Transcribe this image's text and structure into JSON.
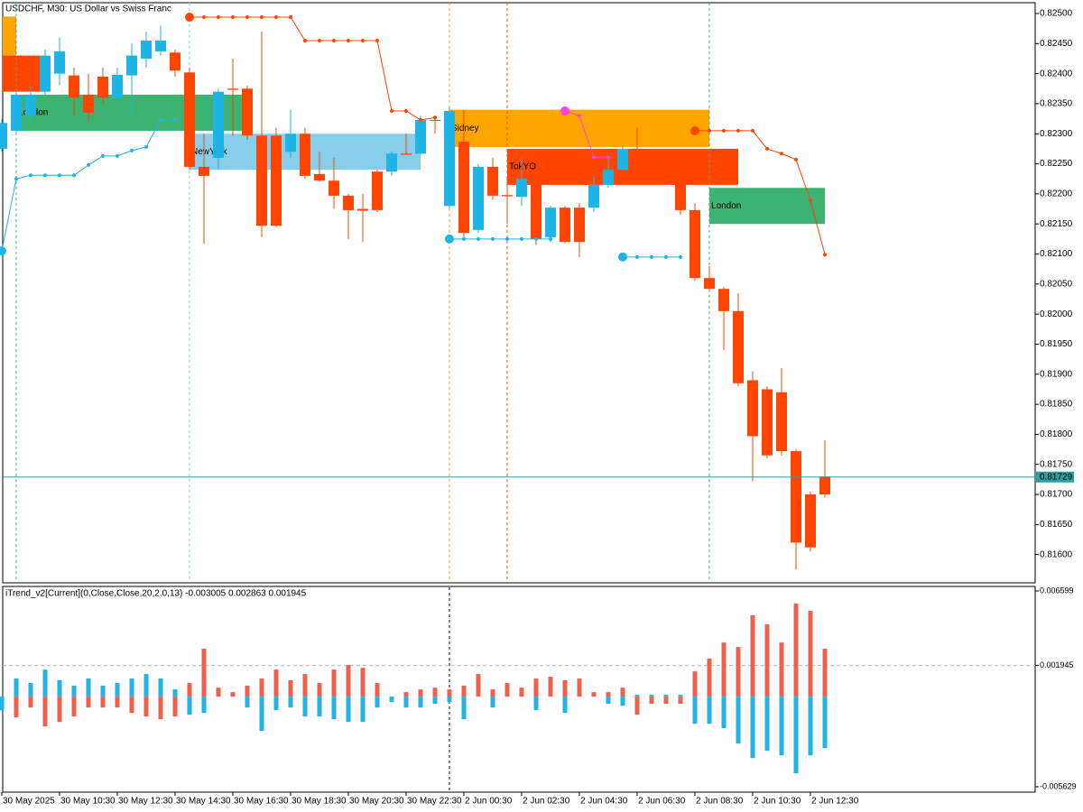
{
  "chart_data": [
    {
      "type": "candlestick",
      "title": "USDCHF, M30:  US Dollar vs Swiss Franc",
      "categories": [
        "30 May 2025",
        null,
        null,
        null,
        "30 May 10:30",
        null,
        null,
        null,
        "30 May 12:30",
        null,
        null,
        null,
        "30 May 14:30",
        null,
        null,
        null,
        "30 May 16:30",
        null,
        null,
        null,
        "30 May 18:30",
        null,
        null,
        null,
        "30 May 20:30",
        null,
        null,
        null,
        "30 May 22:30",
        null,
        null,
        null,
        "2 Jun 00:30",
        null,
        null,
        null,
        "2 Jun 02:30",
        null,
        null,
        null,
        "2 Jun 04:30",
        null,
        null,
        null,
        "2 Jun 06:30",
        null,
        null,
        null,
        "2 Jun 08:30",
        null,
        null,
        null,
        "2 Jun 10:30",
        null,
        null,
        null,
        "2 Jun 12:30",
        null
      ],
      "open": [
        0.82275,
        0.82305,
        0.8233,
        0.8237,
        0.824,
        0.82397,
        0.82365,
        0.82395,
        0.8236,
        0.82397,
        0.82425,
        0.82437,
        0.82435,
        0.82402,
        0.82245,
        0.8226,
        0.82375,
        0.82375,
        0.82297,
        0.82297,
        0.8227,
        0.823,
        0.82233,
        0.82222,
        0.82197,
        0.82175,
        0.82237,
        0.82237,
        0.82267,
        0.82267,
        0.82323,
        0.8218,
        0.82287,
        0.8214,
        0.82245,
        0.82198,
        0.82195,
        0.82225,
        0.82128,
        0.82177,
        0.82177,
        0.82177,
        0.82215,
        0.8224,
        0.82275,
        0.82242,
        0.82246,
        0.82245,
        0.82173,
        0.8206,
        0.82042,
        0.82005,
        0.8189,
        0.81875,
        0.8187,
        0.81772,
        0.817,
        0.8173
      ],
      "high": [
        0.82325,
        0.82375,
        0.8238,
        0.8244,
        0.8246,
        0.8241,
        0.824,
        0.8241,
        0.8241,
        0.8245,
        0.8247,
        0.8248,
        0.8244,
        0.8241,
        0.823,
        0.82375,
        0.82425,
        0.8238,
        0.8247,
        0.8231,
        0.8234,
        0.8231,
        0.8227,
        0.8226,
        0.822,
        0.822,
        0.8224,
        0.8227,
        0.823,
        0.8233,
        0.8233,
        0.82345,
        0.8234,
        0.8225,
        0.8226,
        0.8223,
        0.8226,
        0.8223,
        0.8218,
        0.8218,
        0.82185,
        0.8223,
        0.8226,
        0.8228,
        0.8231,
        0.8225,
        0.82255,
        0.8226,
        0.82185,
        0.8208,
        0.82045,
        0.82035,
        0.81905,
        0.8188,
        0.8191,
        0.81775,
        0.81705,
        0.8179
      ],
      "low": [
        0.8227,
        0.823,
        0.8232,
        0.82365,
        0.8238,
        0.8233,
        0.8232,
        0.8235,
        0.82355,
        0.8233,
        0.8241,
        0.8243,
        0.82395,
        0.8224,
        0.82117,
        0.8224,
        0.82297,
        0.8229,
        0.82128,
        0.82145,
        0.8226,
        0.82225,
        0.8222,
        0.82175,
        0.82125,
        0.8212,
        0.8217,
        0.8223,
        0.82265,
        0.82265,
        0.823,
        0.82175,
        0.82128,
        0.82135,
        0.8219,
        0.8215,
        0.8218,
        0.82115,
        0.8212,
        0.82118,
        0.82095,
        0.8217,
        0.8221,
        0.8224,
        0.8224,
        0.82235,
        0.8224,
        0.82165,
        0.82055,
        0.8204,
        0.8194,
        0.8188,
        0.81722,
        0.8176,
        0.81765,
        0.81575,
        0.81605,
        0.81695
      ],
      "close": [
        0.82318,
        0.82365,
        0.82365,
        0.8243,
        0.82437,
        0.8236,
        0.82335,
        0.8236,
        0.82398,
        0.8243,
        0.82455,
        0.82455,
        0.82405,
        0.82245,
        0.8223,
        0.8237,
        0.82373,
        0.82297,
        0.82147,
        0.82147,
        0.823,
        0.8223,
        0.82222,
        0.82197,
        0.82173,
        0.82172,
        0.82173,
        0.82267,
        0.82265,
        0.82323,
        0.82322,
        0.82338,
        0.82135,
        0.82245,
        0.82197,
        0.82196,
        0.82225,
        0.82125,
        0.82177,
        0.8212,
        0.8212,
        0.82215,
        0.8224,
        0.82275,
        0.8224,
        0.8224,
        0.82243,
        0.82173,
        0.8206,
        0.82042,
        0.82005,
        0.81885,
        0.81797,
        0.81765,
        0.81772,
        0.8162,
        0.81612,
        0.817
      ],
      "up_color": "#1eb4e6",
      "down_color": "#ff4500",
      "ylim": [
        0.81553,
        0.82518
      ],
      "yticks": [
        {
          "value": 0.825,
          "label": "0.82500"
        },
        {
          "value": 0.8245,
          "label": "0.82450"
        },
        {
          "value": 0.824,
          "label": "0.82400"
        },
        {
          "value": 0.8235,
          "label": "0.82350"
        },
        {
          "value": 0.823,
          "label": "0.82300"
        },
        {
          "value": 0.8225,
          "label": "0.82250"
        },
        {
          "value": 0.822,
          "label": "0.82200"
        },
        {
          "value": 0.8215,
          "label": "0.82150"
        },
        {
          "value": 0.821,
          "label": "0.82100"
        },
        {
          "value": 0.8205,
          "label": "0.82050"
        },
        {
          "value": 0.82,
          "label": "0.82000"
        },
        {
          "value": 0.8195,
          "label": "0.81950"
        },
        {
          "value": 0.819,
          "label": "0.81900"
        },
        {
          "value": 0.8185,
          "label": "0.81850"
        },
        {
          "value": 0.818,
          "label": "0.81800"
        },
        {
          "value": 0.8175,
          "label": "0.81750"
        },
        {
          "value": 0.817,
          "label": "0.81700"
        },
        {
          "value": 0.8165,
          "label": "0.81650"
        },
        {
          "value": 0.816,
          "label": "0.81600"
        }
      ],
      "current_price": 0.81729,
      "current_color": "#2e9e9e",
      "sessions": [
        {
          "color": "#ffa500",
          "start": 0,
          "end": 1,
          "high": 0.82495,
          "low": 0.8243
        },
        {
          "color": "#ff4500",
          "start": 0,
          "end": 3,
          "high": 0.8243,
          "low": 0.8237
        },
        {
          "name": "London",
          "color": "#3cb371",
          "start": 1,
          "end": 17,
          "high": 0.82365,
          "low": 0.82305
        },
        {
          "name": "NewYork",
          "color": "#87ceeb",
          "start": 13,
          "end": 29,
          "high": 0.823,
          "low": 0.8224
        },
        {
          "name": "Sidney",
          "color": "#ffa500",
          "start": 31,
          "end": 49,
          "high": 0.8234,
          "low": 0.82278
        },
        {
          "name": "TokYO",
          "color": "#ff4500",
          "start": 35,
          "end": 51,
          "high": 0.82275,
          "low": 0.82215
        },
        {
          "name": "London",
          "color": "#3cb371",
          "start": 49,
          "end": 57,
          "high": 0.8221,
          "low": 0.8215
        }
      ],
      "lines": [
        {
          "color": "#1eb4e6",
          "start": 0,
          "values": [
            0.82105,
            0.82225,
            0.82231,
            0.82231,
            0.82231,
            0.82231,
            0.82248,
            0.82263,
            0.82263,
            0.82272,
            0.82278,
            0.82323,
            0.82323
          ]
        },
        {
          "color": "#ff4500",
          "start": 13,
          "values": [
            0.82494,
            0.82494,
            0.82494,
            0.82494,
            0.82494,
            0.82494,
            0.82494,
            0.82494,
            0.82455,
            0.82455,
            0.82455,
            0.82455,
            0.82455,
            0.82455,
            0.82338,
            0.82338,
            0.82323,
            0.82327
          ]
        },
        {
          "color": "#1eb4e6",
          "start": 31,
          "values": [
            0.82125,
            0.82125,
            0.82125,
            0.82125,
            0.82125,
            0.82125,
            0.82125,
            0.82125
          ]
        },
        {
          "color": "#ff44dd",
          "start": 39,
          "values": [
            0.82338,
            0.8233,
            0.82261,
            0.82261
          ]
        },
        {
          "color": "#1eb4e6",
          "start": 43,
          "values": [
            0.82095,
            0.82095,
            0.82095,
            0.82095,
            0.82095
          ]
        },
        {
          "color": "#ff4500",
          "start": 48,
          "values": [
            0.82305,
            0.82305,
            0.82305,
            0.82305,
            0.82305,
            0.82275,
            0.82267,
            0.82257,
            0.82189,
            0.82099
          ]
        }
      ]
    },
    {
      "type": "bar",
      "title": "iTrend_v2[Current](0,Close,Close,20,2.0,13) -0.003005 0.002863 0.001945",
      "ylim": [
        -0.005967,
        0.006881
      ],
      "yticks": [
        0.006599,
        0.001945,
        -0.005629
      ],
      "level": 0.001945,
      "series": [
        {
          "color": "#f0604a",
          "values": [
            0,
            -0.0013,
            -0.00068,
            -0.00186,
            -0.00158,
            -0.00124,
            -0.00068,
            -0.00068,
            -0.00068,
            -0.00102,
            -0.00124,
            -0.00141,
            -0.00124,
            0.00085,
            0.00299,
            0.00056,
            0.00028,
            0.00068,
            0.00113,
            0.00169,
            0.00102,
            0.00141,
            0.00085,
            0.00169,
            0.00197,
            0.0018,
            0.00085,
            0,
            0.00028,
            0.00045,
            0.00056,
            0.00045,
            0.00068,
            0.00141,
            0.00045,
            0.00085,
            0.00056,
            0.00113,
            0.00124,
            0.00102,
            0.00113,
            0.00028,
            0.00028,
            0.00056,
            -0.00113,
            -0.00045,
            -0.00045,
            -0.00045,
            0.00158,
            0.00237,
            0.00338,
            0.0031,
            0.00508,
            0.00451,
            0.00338,
            0.00581,
            0.00536,
            0.00299
          ]
        },
        {
          "color": "#1eb4e6",
          "values": [
            -0.00085,
            0.00113,
            0.00085,
            0.00169,
            0.00102,
            0.00068,
            0.00113,
            0.00068,
            0.00085,
            0.00113,
            0.00141,
            0.00113,
            0.00045,
            -0.00113,
            -0.00102,
            0,
            0,
            -0.00068,
            -0.00214,
            -0.00085,
            -0.00068,
            -0.00124,
            -0.00124,
            -0.00141,
            -0.00158,
            -0.00158,
            -0.00068,
            -0.00034,
            -0.00068,
            -0.00068,
            -0.00045,
            -0.00034,
            -0.00141,
            0,
            -0.00068,
            0,
            0,
            -0.00085,
            0,
            -0.00102,
            0,
            0,
            -0.00045,
            -0.00056,
            0.00011,
            0.00011,
            0.00011,
            0.00011,
            -0.00169,
            -0.00169,
            -0.00197,
            -0.00293,
            -0.00384,
            -0.00338,
            -0.00367,
            -0.00479,
            -0.00367,
            -0.00321
          ]
        }
      ]
    }
  ]
}
